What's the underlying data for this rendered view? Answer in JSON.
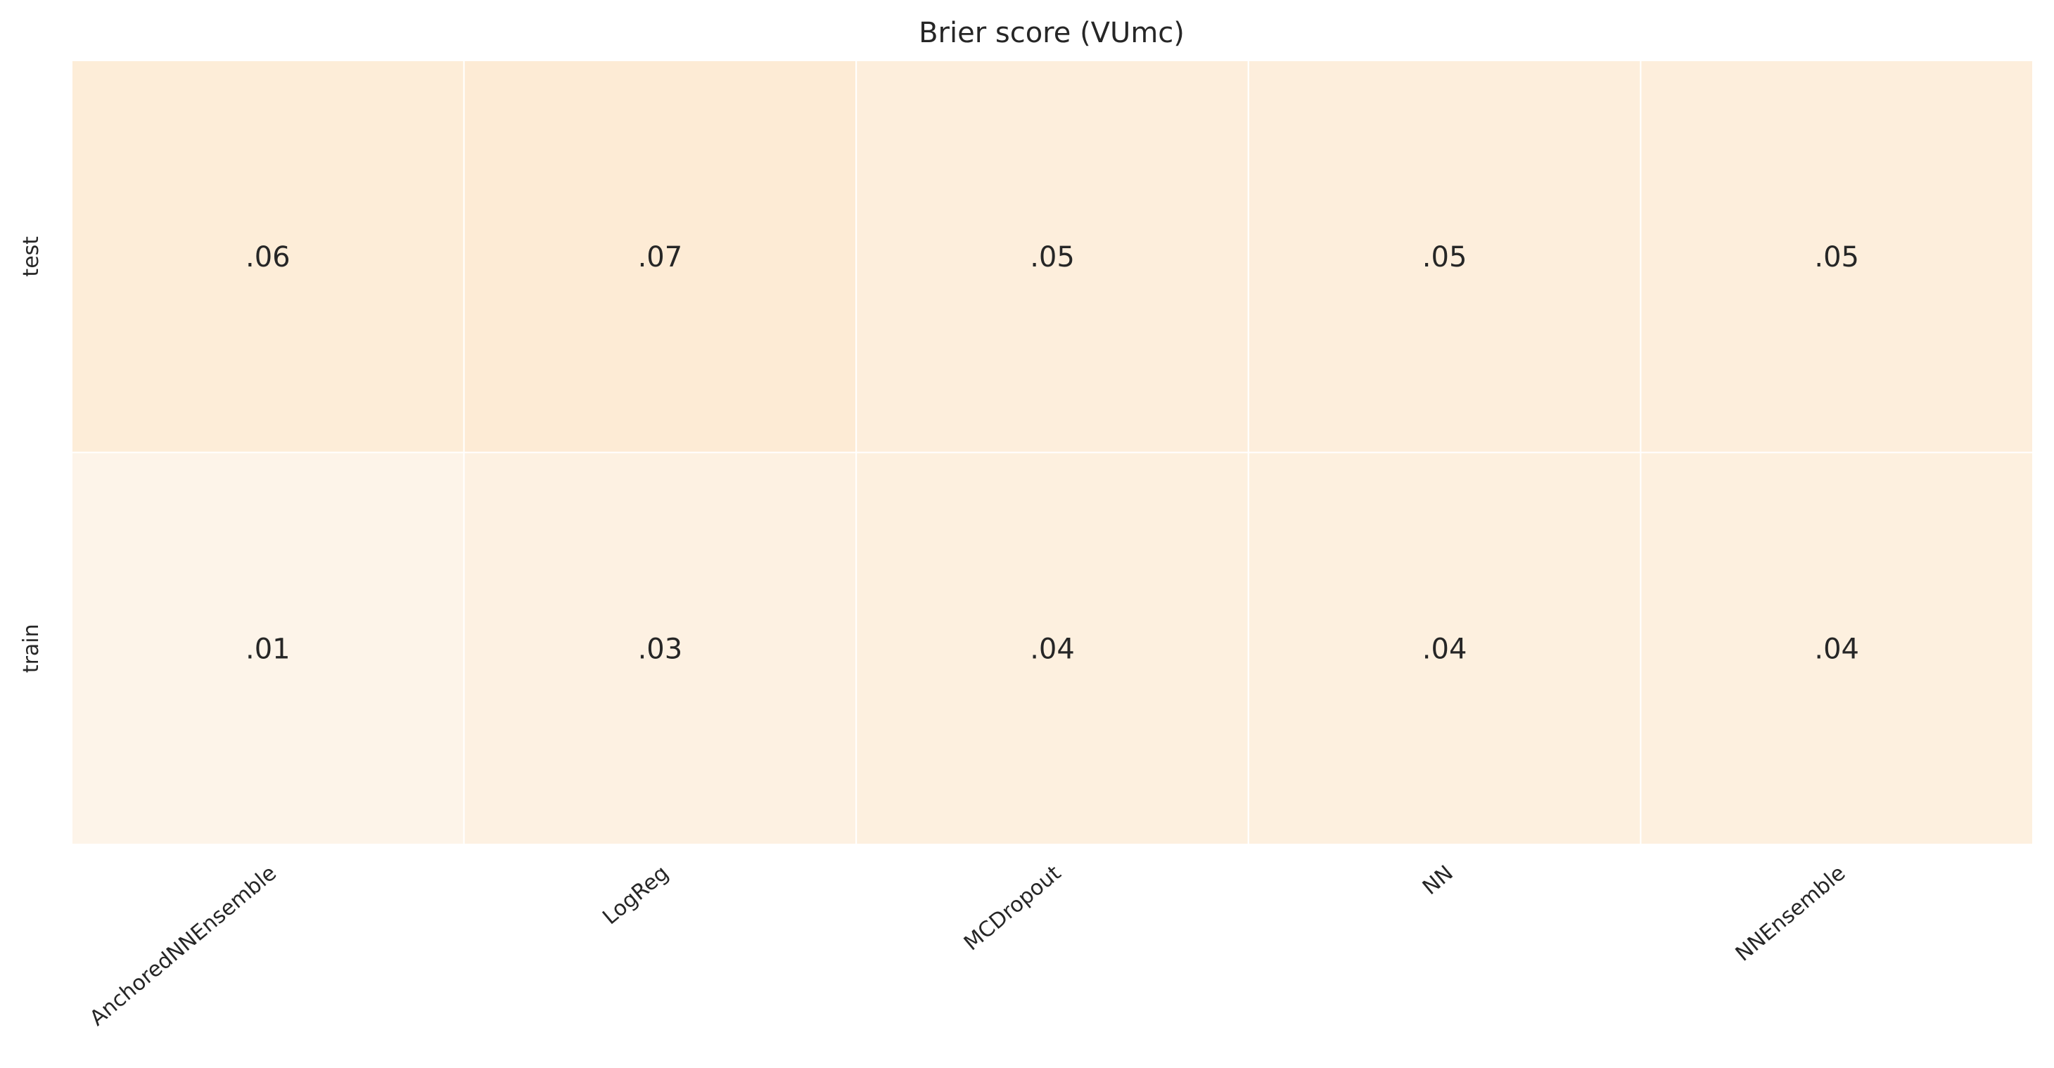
{
  "chart_data": {
    "type": "heatmap",
    "title": "Brier score (VUmc)",
    "xlabel": "",
    "ylabel": "",
    "x_categories": [
      "AnchoredNNEnsemble",
      "LogReg",
      "MCDropout",
      "NN",
      "NNEnsemble"
    ],
    "y_categories": [
      "test",
      "train"
    ],
    "values": [
      [
        0.06,
        0.07,
        0.05,
        0.05,
        0.05
      ],
      [
        0.01,
        0.03,
        0.04,
        0.04,
        0.04
      ]
    ],
    "cell_labels": [
      [
        ".06",
        ".07",
        ".05",
        ".05",
        ".05"
      ],
      [
        ".01",
        ".03",
        ".04",
        ".04",
        ".04"
      ]
    ],
    "colormap": {
      "low_color": "#fdf4e9",
      "high_color": "#fdebd5",
      "vmin": 0.01,
      "vmax": 0.07
    },
    "grid_line_color": "#ffffff",
    "colorbar": false
  }
}
